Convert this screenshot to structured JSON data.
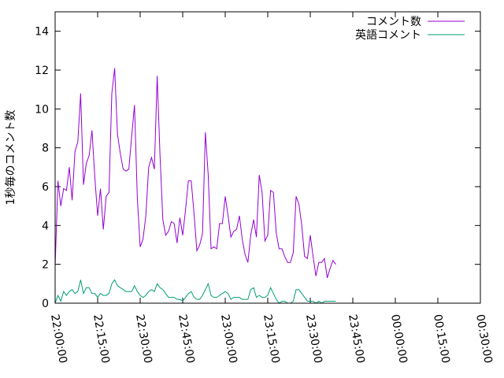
{
  "chart_data": {
    "type": "line",
    "ylabel": "1秒毎のコメント数",
    "xlabel": "",
    "ylim": [
      0,
      15
    ],
    "xlim": [
      "22:00:00",
      "00:30:00"
    ],
    "yticks": [
      "0",
      "2",
      "4",
      "6",
      "8",
      "10",
      "12",
      "14"
    ],
    "xticks": [
      "22:00:00",
      "22:15:00",
      "22:30:00",
      "22:45:00",
      "23:00:00",
      "23:15:00",
      "23:30:00",
      "23:45:00",
      "00:00:00",
      "00:15:00",
      "00:30:00"
    ],
    "legend_position": "top-right",
    "x_minutes_from_2200": [
      0,
      1,
      2,
      3,
      4,
      5,
      6,
      7,
      8,
      9,
      10,
      11,
      12,
      13,
      14,
      15,
      16,
      17,
      18,
      19,
      20,
      21,
      22,
      23,
      24,
      25,
      26,
      27,
      28,
      29,
      30,
      31,
      32,
      33,
      34,
      35,
      36,
      37,
      38,
      39,
      40,
      41,
      42,
      43,
      44,
      45,
      46,
      47,
      48,
      49,
      50,
      51,
      52,
      53,
      54,
      55,
      56,
      57,
      58,
      59,
      60,
      61,
      62,
      63,
      64,
      65,
      66,
      67,
      68,
      69,
      70,
      71,
      72,
      73,
      74,
      75,
      76,
      77,
      78,
      79,
      80,
      81,
      82,
      83,
      84,
      85,
      86,
      87,
      88,
      89,
      90,
      91,
      92,
      93,
      94,
      95,
      96,
      97,
      98,
      99,
      100,
      101,
      102,
      103,
      104,
      105,
      106,
      107,
      108,
      109,
      110,
      111,
      112,
      113,
      114,
      115,
      116,
      117,
      118,
      119,
      120,
      121,
      122,
      123,
      124,
      125,
      126,
      127,
      128,
      129,
      130,
      131,
      132,
      133,
      134,
      135,
      136,
      137,
      138,
      139,
      140,
      141,
      142,
      143
    ],
    "series": [
      {
        "name": "コメント数",
        "color": "#9400d3",
        "values": [
          1.9,
          6.3,
          5.0,
          5.9,
          5.8,
          7.0,
          5.3,
          7.8,
          8.3,
          10.8,
          6.1,
          7.2,
          7.6,
          8.9,
          6.5,
          4.5,
          5.9,
          3.8,
          5.5,
          5.7,
          10.8,
          12.1,
          8.7,
          7.7,
          6.9,
          6.8,
          6.9,
          8.6,
          10.2,
          5.4,
          2.9,
          3.3,
          4.5,
          7.0,
          7.5,
          6.9,
          11.7,
          7.6,
          4.3,
          3.5,
          3.7,
          4.2,
          4.1,
          3.1,
          4.4,
          3.5,
          4.8,
          6.3,
          6.3,
          4.6,
          2.7,
          3.0,
          3.6,
          8.8,
          6.6,
          2.8,
          2.9,
          2.8,
          4.1,
          4.1,
          5.5,
          4.5,
          3.4,
          3.7,
          3.8,
          4.5,
          3.3,
          2.5,
          2.1,
          3.5,
          4.3,
          3.4,
          6.6,
          5.7,
          3.2,
          3.5,
          5.8,
          5.7,
          3.6,
          2.8,
          2.8,
          2.4,
          2.1,
          2.1,
          2.6,
          5.5,
          5.1,
          4.0,
          2.4,
          2.3,
          3.5,
          2.4,
          1.4,
          2.1,
          2.1,
          2.3,
          1.3,
          1.8,
          2.2,
          2.0
        ],
        "last_x": 99
      },
      {
        "name": "英語コメント",
        "color": "#009e73",
        "values": [
          0.0,
          0.4,
          0.1,
          0.6,
          0.4,
          0.6,
          0.7,
          0.5,
          0.6,
          1.2,
          0.5,
          0.8,
          0.8,
          0.5,
          0.5,
          0.3,
          0.5,
          0.4,
          0.4,
          0.5,
          1.0,
          1.2,
          0.9,
          0.8,
          0.7,
          0.6,
          0.6,
          0.6,
          0.9,
          0.6,
          0.4,
          0.3,
          0.4,
          0.6,
          0.7,
          0.6,
          1.0,
          0.8,
          0.7,
          0.5,
          0.3,
          0.3,
          0.3,
          0.2,
          0.2,
          0.1,
          0.3,
          0.5,
          0.6,
          0.3,
          0.2,
          0.2,
          0.4,
          0.7,
          1.0,
          0.4,
          0.3,
          0.3,
          0.4,
          0.5,
          0.6,
          0.5,
          0.2,
          0.3,
          0.3,
          0.3,
          0.2,
          0.2,
          0.2,
          0.7,
          0.8,
          0.3,
          0.4,
          0.3,
          0.3,
          0.4,
          0.8,
          0.5,
          0.2,
          0.0,
          0.1,
          0.1,
          0.0,
          0.0,
          0.1,
          0.7,
          0.7,
          0.5,
          0.3,
          0.1,
          0.1,
          0.1,
          0.0,
          0.1,
          0.0,
          0.1,
          0.1,
          0.1,
          0.1,
          0.1
        ],
        "last_x": 99
      }
    ]
  }
}
